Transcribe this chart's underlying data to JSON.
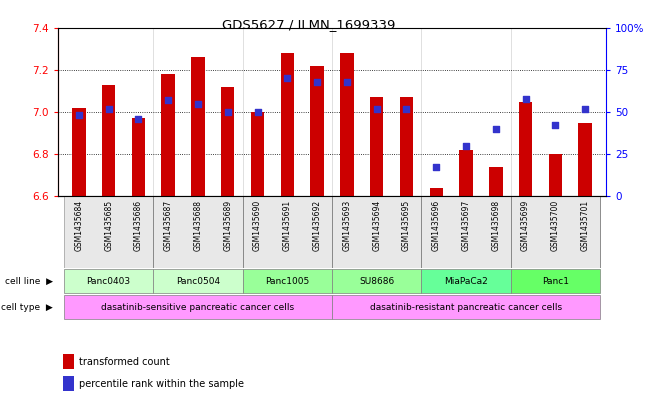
{
  "title": "GDS5627 / ILMN_1699339",
  "samples": [
    "GSM1435684",
    "GSM1435685",
    "GSM1435686",
    "GSM1435687",
    "GSM1435688",
    "GSM1435689",
    "GSM1435690",
    "GSM1435691",
    "GSM1435692",
    "GSM1435693",
    "GSM1435694",
    "GSM1435695",
    "GSM1435696",
    "GSM1435697",
    "GSM1435698",
    "GSM1435699",
    "GSM1435700",
    "GSM1435701"
  ],
  "bar_values": [
    7.02,
    7.13,
    6.97,
    7.18,
    7.26,
    7.12,
    7.0,
    7.28,
    7.22,
    7.28,
    7.07,
    7.07,
    6.64,
    6.82,
    6.74,
    7.05,
    6.8,
    6.95
  ],
  "percentile_values": [
    48,
    52,
    46,
    57,
    55,
    50,
    50,
    70,
    68,
    68,
    52,
    52,
    17,
    30,
    40,
    58,
    42,
    52
  ],
  "ylim_left": [
    6.6,
    7.4
  ],
  "ylim_right": [
    0,
    100
  ],
  "yticks_left": [
    6.6,
    6.8,
    7.0,
    7.2,
    7.4
  ],
  "yticks_right": [
    0,
    25,
    50,
    75,
    100
  ],
  "bar_color": "#cc0000",
  "dot_color": "#3333cc",
  "bar_bottom": 6.6,
  "cell_line_groups": [
    {
      "label": "Panc0403",
      "indices": [
        0,
        1,
        2
      ],
      "color": "#ccffcc"
    },
    {
      "label": "Panc0504",
      "indices": [
        3,
        4,
        5
      ],
      "color": "#ccffcc"
    },
    {
      "label": "Panc1005",
      "indices": [
        6,
        7,
        8
      ],
      "color": "#99ff99"
    },
    {
      "label": "SU8686",
      "indices": [
        9,
        10,
        11
      ],
      "color": "#99ff99"
    },
    {
      "label": "MiaPaCa2",
      "indices": [
        12,
        13,
        14
      ],
      "color": "#66ff99"
    },
    {
      "label": "Panc1",
      "indices": [
        15,
        16,
        17
      ],
      "color": "#66ff66"
    }
  ],
  "cell_type_groups": [
    {
      "label": "dasatinib-sensitive pancreatic cancer cells",
      "start": 0,
      "end": 8,
      "color": "#ff99ff"
    },
    {
      "label": "dasatinib-resistant pancreatic cancer cells",
      "start": 9,
      "end": 17,
      "color": "#ff99ff"
    }
  ],
  "bg_color": "#f0f0f0"
}
